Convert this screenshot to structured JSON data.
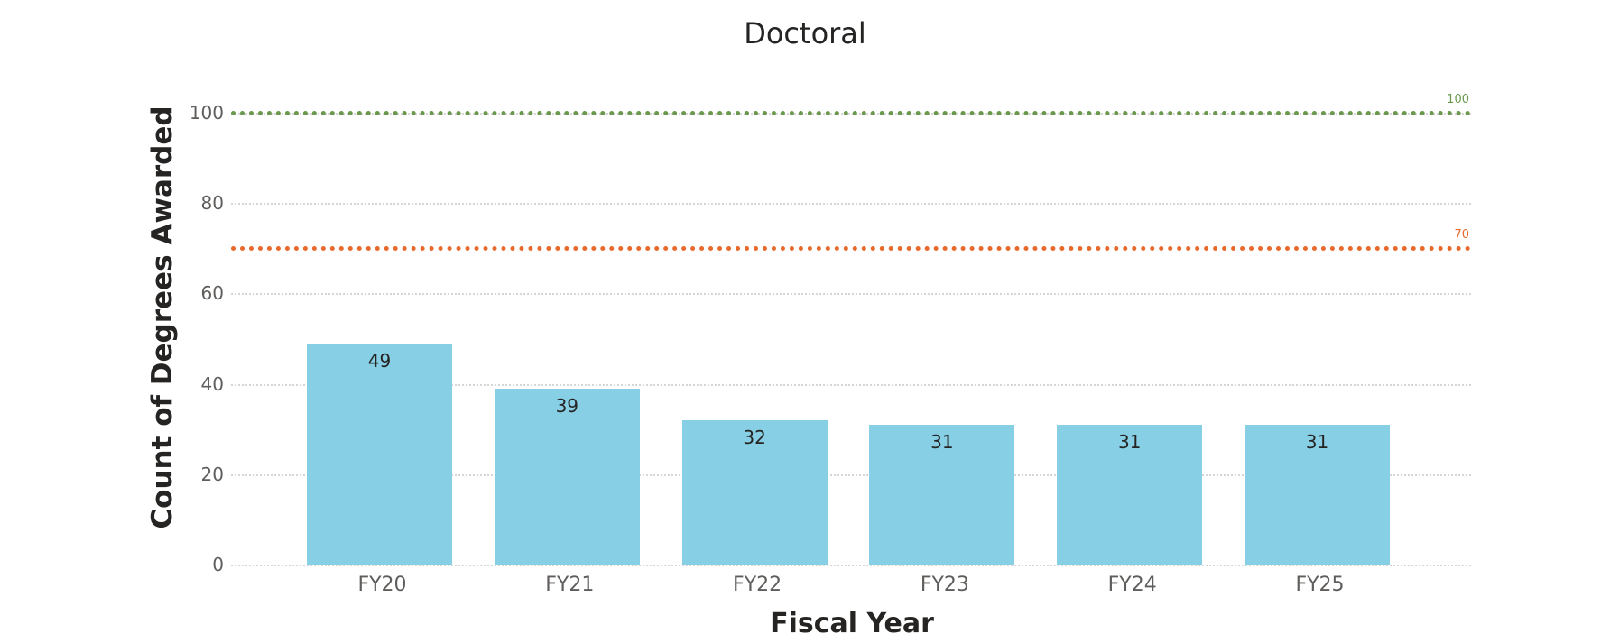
{
  "chart_data": {
    "type": "bar",
    "title": "Doctoral",
    "xlabel": "Fiscal Year",
    "ylabel": "Count of Degrees Awarded",
    "categories": [
      "FY20",
      "FY21",
      "FY22",
      "FY23",
      "FY24",
      "FY25"
    ],
    "values": [
      49,
      39,
      32,
      31,
      31,
      31
    ],
    "data_labels": [
      "49",
      "39",
      "32",
      "31",
      "31",
      "31"
    ],
    "ylim": [
      0,
      100
    ],
    "yticks": [
      0,
      20,
      40,
      60,
      80,
      100
    ],
    "grid": true,
    "legend": null,
    "bar_color": "#87CFE5",
    "reference_lines": [
      {
        "value": 100,
        "label": "100",
        "color": "#6A994E",
        "style": "dotted"
      },
      {
        "value": 70,
        "label": "70",
        "color": "#E8692C",
        "style": "dotted"
      }
    ]
  },
  "ui": {
    "ytick_labels": [
      "0",
      "20",
      "40",
      "60",
      "80",
      "100"
    ]
  }
}
